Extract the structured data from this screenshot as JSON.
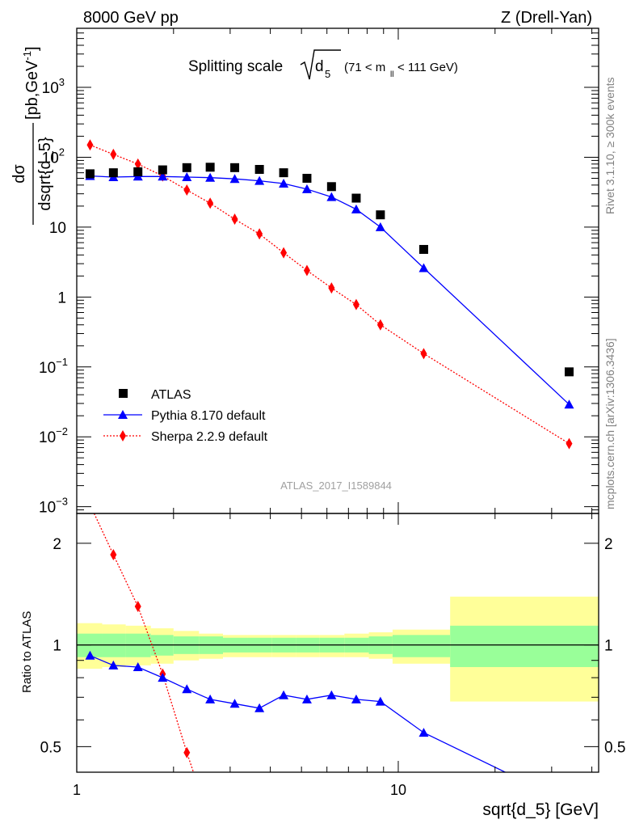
{
  "header": {
    "left": "8000 GeV pp",
    "right": "Z (Drell-Yan)"
  },
  "plot_title": {
    "prefix": "Splitting scale",
    "sqrt_arg": "d",
    "sqrt_sub": "5",
    "range_a": "(71 < m",
    "range_sub": "ll",
    "range_b": " < 111 GeV)"
  },
  "side_labels": {
    "rivet": "Rivet 3.1.10, ≥ 300k events",
    "mcplots": "mcplots.cern.ch [arXiv:1306.3436]"
  },
  "watermark": "ATLAS_2017_I1589844",
  "axes": {
    "main_ylabel": "dσ/dsqrt{d_5} [pb,GeV⁻¹]",
    "main_ylabel_num": "dσ",
    "main_ylabel_den": "dsqrt{d_5}",
    "main_ylabel_unit_a": "[pb,GeV",
    "main_ylabel_unit_sup": "-1",
    "main_ylabel_unit_b": "]",
    "ratio_ylabel": "Ratio to ATLAS",
    "xlabel": "sqrt{d_5} [GeV]"
  },
  "legend": {
    "atlas": "ATLAS",
    "pythia": "Pythia 8.170 default",
    "sherpa": "Sherpa 2.2.9 default"
  },
  "colors": {
    "atlas": "#000000",
    "pythia": "#0000ff",
    "sherpa": "#ff0000",
    "band_inner": "#99ff99",
    "band_outer": "#ffff99"
  },
  "chart_data": [
    {
      "type": "scatter",
      "title": "Splitting scale √d5 (71 < m_ll < 111 GeV)",
      "xlabel": "sqrt{d_5} [GeV]",
      "ylabel": "dσ/dsqrt{d_5} [pb,GeV⁻¹]",
      "xscale": "log",
      "yscale": "log",
      "xlim": [
        1,
        42
      ],
      "ylim": [
        0.0008,
        7000
      ],
      "x_ticklabels": [
        "1",
        "10"
      ],
      "y_ticklabels": [
        "10^-3",
        "10^-2",
        "10^-1",
        "1",
        "10",
        "10^2",
        "10^3"
      ],
      "legend_position": "lower-left",
      "series": [
        {
          "name": "ATLAS",
          "marker": "square",
          "x": [
            1.1,
            1.3,
            1.55,
            1.85,
            2.2,
            2.6,
            3.1,
            3.7,
            4.4,
            5.2,
            6.2,
            7.4,
            8.8,
            12.0,
            34.0
          ],
          "y": [
            58,
            60,
            62,
            66,
            71,
            72,
            71,
            67,
            60,
            50,
            38,
            26,
            15,
            4.8,
            0.085
          ]
        },
        {
          "name": "Pythia 8.170 default",
          "marker": "triangle",
          "line": "solid",
          "x": [
            1.1,
            1.3,
            1.55,
            1.85,
            2.2,
            2.6,
            3.1,
            3.7,
            4.4,
            5.2,
            6.2,
            7.4,
            8.8,
            12.0,
            34.0
          ],
          "y": [
            54,
            52,
            53,
            53,
            52,
            51,
            49,
            46,
            42,
            35,
            27,
            18,
            10,
            2.6,
            0.029
          ]
        },
        {
          "name": "Sherpa 2.2.9 default",
          "marker": "diamond",
          "line": "dotted",
          "x": [
            1.1,
            1.3,
            1.55,
            1.85,
            2.2,
            2.6,
            3.1,
            3.7,
            4.4,
            5.2,
            6.2,
            7.4,
            8.8,
            12.0,
            34.0
          ],
          "y": [
            150,
            110,
            80,
            54,
            34,
            22,
            13,
            8,
            4.3,
            2.4,
            1.35,
            0.78,
            0.4,
            0.155,
            0.008
          ]
        }
      ]
    },
    {
      "type": "line",
      "xlabel": "sqrt{d_5} [GeV]",
      "ylabel": "Ratio to ATLAS",
      "xscale": "log",
      "yscale": "log",
      "xlim": [
        1,
        42
      ],
      "ylim": [
        0.42,
        2.45
      ],
      "y_ticklabels": [
        "0.5",
        "1",
        "2"
      ],
      "reference_line": 1,
      "uncertainty_band": {
        "edges": [
          1,
          1.2,
          1.42,
          1.7,
          2.0,
          2.4,
          2.85,
          3.4,
          4.05,
          4.8,
          5.7,
          6.8,
          8.1,
          9.6,
          14.5,
          42
        ],
        "inner_lo": [
          0.92,
          0.92,
          0.92,
          0.93,
          0.94,
          0.94,
          0.95,
          0.95,
          0.95,
          0.95,
          0.95,
          0.95,
          0.94,
          0.92,
          0.86
        ],
        "inner_hi": [
          1.08,
          1.08,
          1.08,
          1.07,
          1.06,
          1.06,
          1.05,
          1.05,
          1.05,
          1.05,
          1.05,
          1.05,
          1.06,
          1.07,
          1.14
        ],
        "outer_lo": [
          0.85,
          0.86,
          0.87,
          0.88,
          0.9,
          0.91,
          0.92,
          0.92,
          0.92,
          0.92,
          0.92,
          0.92,
          0.91,
          0.88,
          0.68
        ],
        "outer_hi": [
          1.16,
          1.15,
          1.14,
          1.12,
          1.1,
          1.08,
          1.07,
          1.07,
          1.07,
          1.07,
          1.07,
          1.08,
          1.09,
          1.11,
          1.39
        ]
      },
      "series": [
        {
          "name": "Pythia 8.170 default",
          "marker": "triangle",
          "line": "solid",
          "x": [
            1.1,
            1.3,
            1.55,
            1.85,
            2.2,
            2.6,
            3.1,
            3.7,
            4.4,
            5.2,
            6.2,
            7.4,
            8.8,
            12.0,
            34.0
          ],
          "y": [
            0.93,
            0.87,
            0.86,
            0.8,
            0.74,
            0.69,
            0.67,
            0.65,
            0.71,
            0.69,
            0.71,
            0.69,
            0.68,
            0.55,
            0.34
          ]
        },
        {
          "name": "Sherpa 2.2.9 default",
          "marker": "diamond",
          "line": "dotted",
          "x": [
            1.1,
            1.3,
            1.55,
            1.85,
            2.2,
            2.6
          ],
          "y": [
            2.6,
            1.85,
            1.3,
            0.82,
            0.48,
            0.3
          ]
        }
      ]
    }
  ]
}
